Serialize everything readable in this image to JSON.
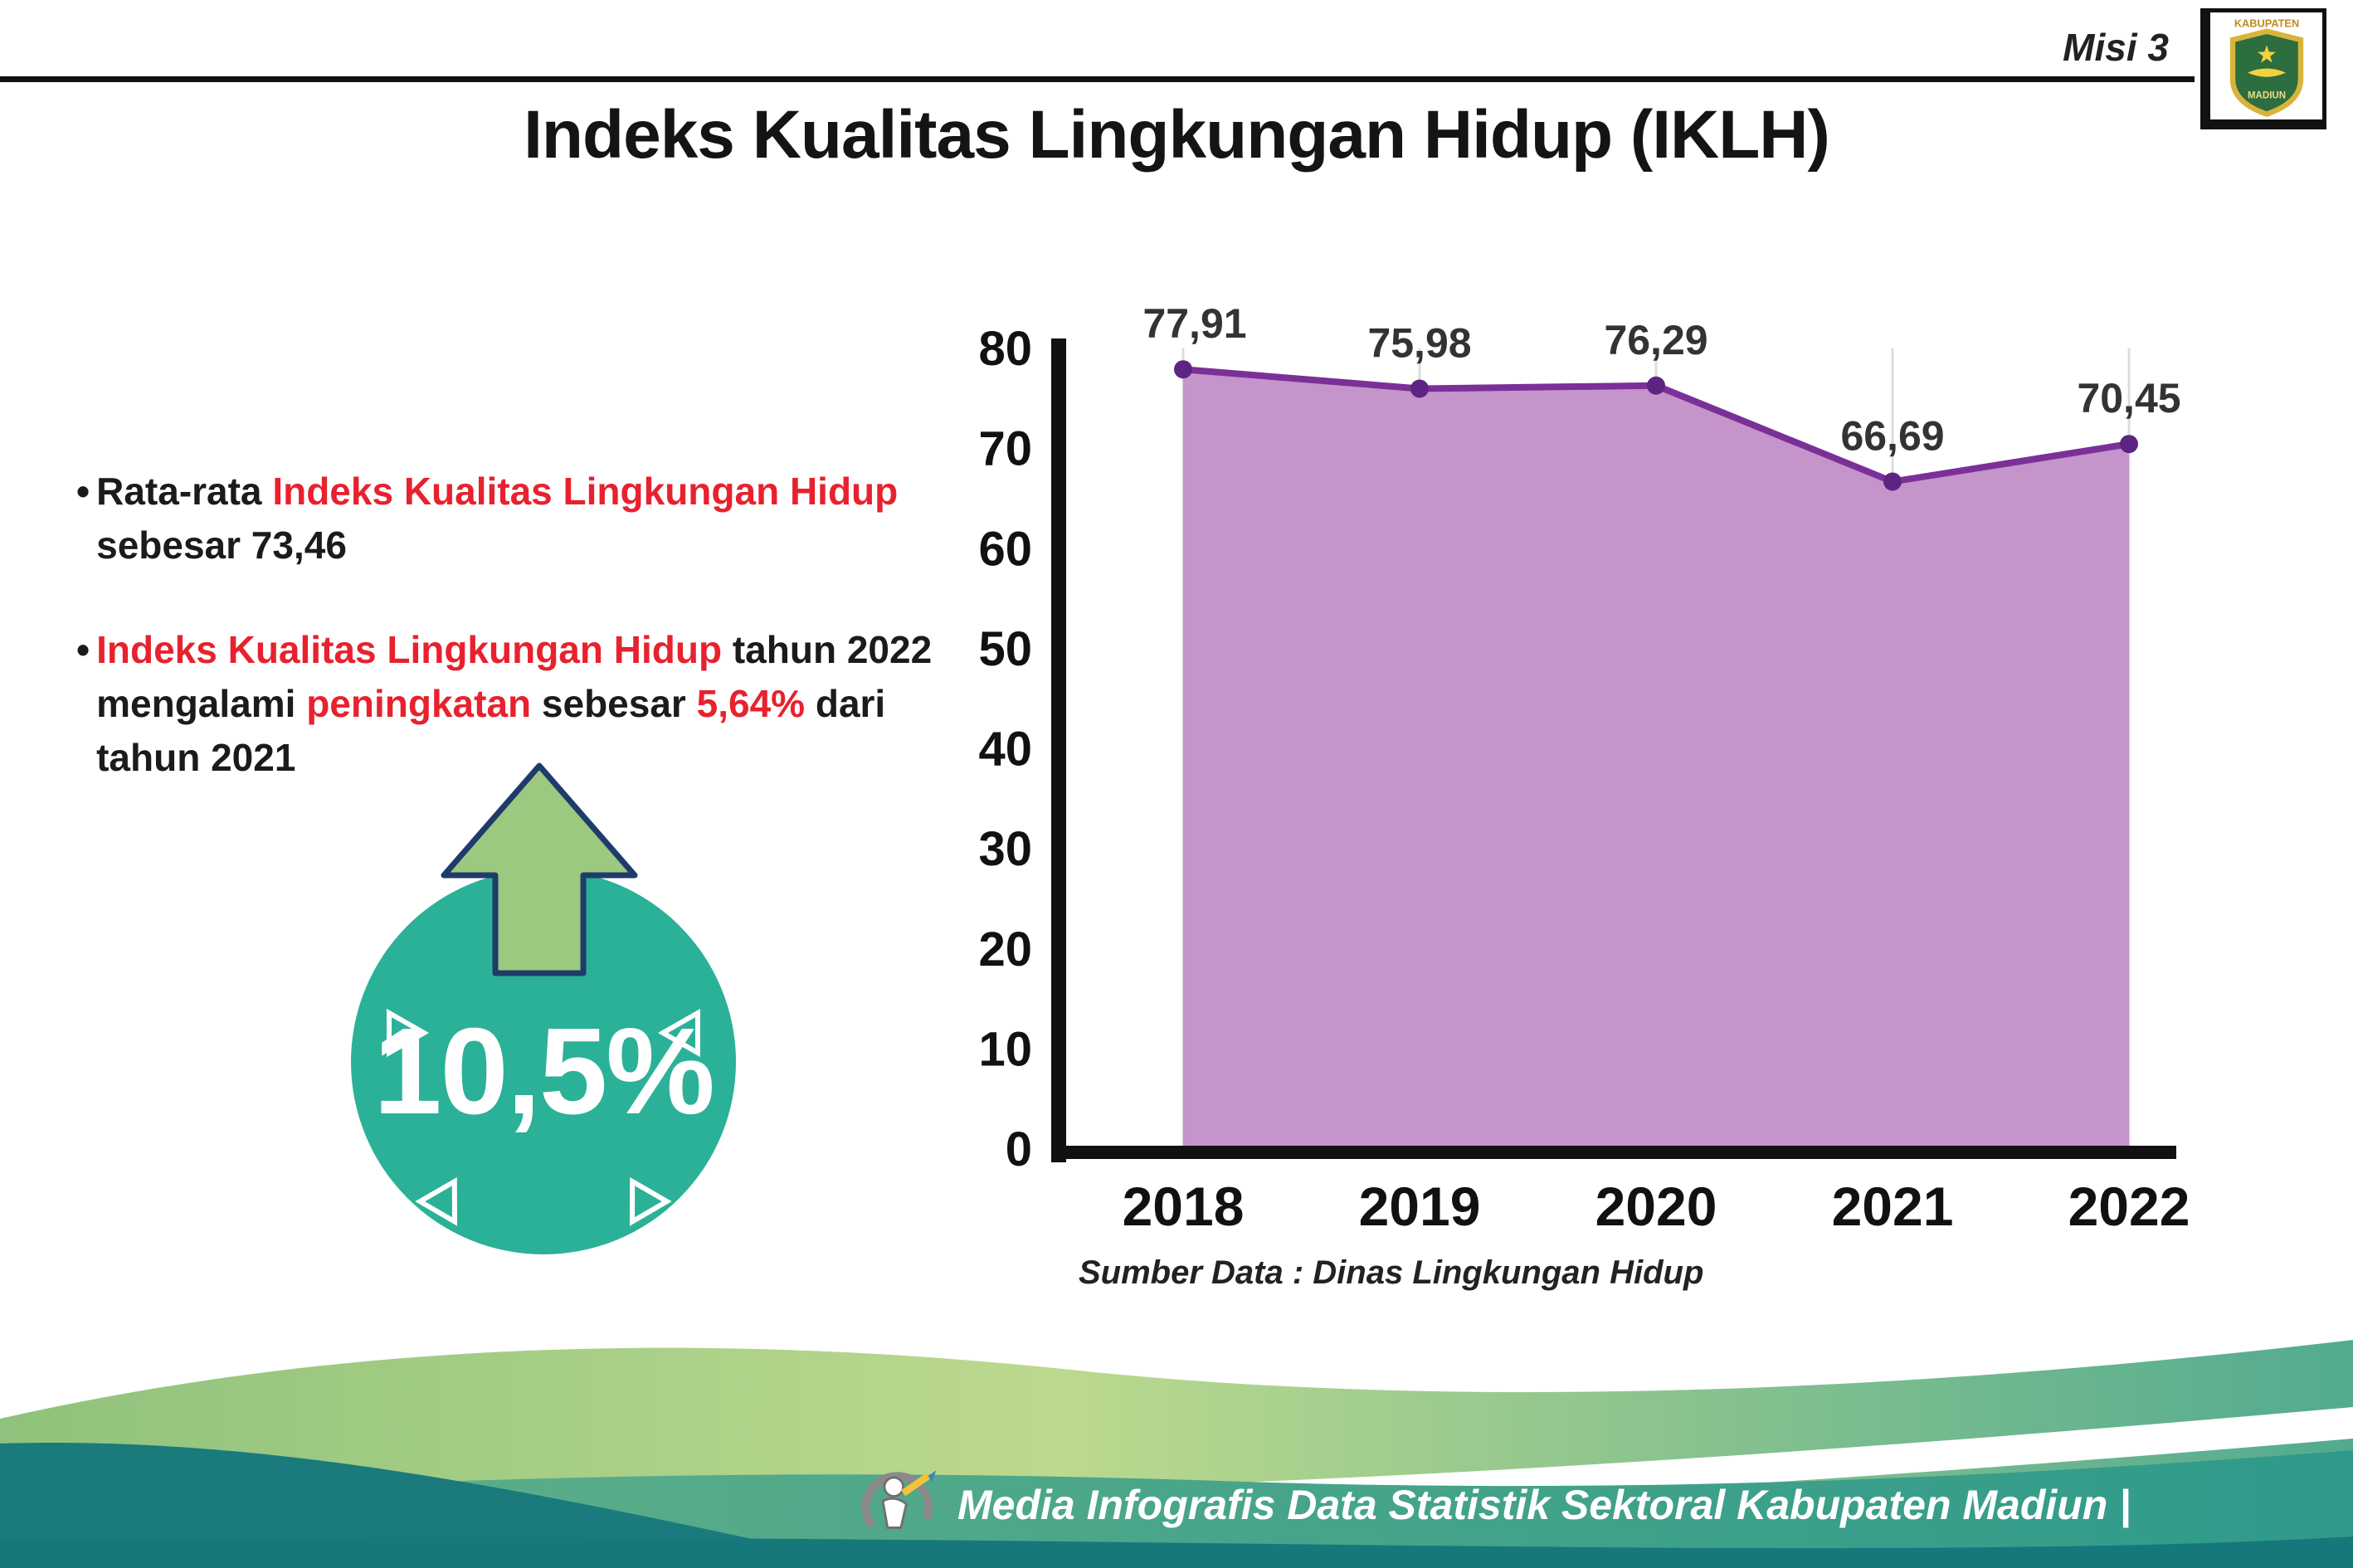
{
  "header": {
    "misi": "Misi 3",
    "title": "Indeks Kualitas Lingkungan Hidup (IKLH)"
  },
  "logo": {
    "line1": "KABUPATEN",
    "line2": "MADIUN"
  },
  "bullets": {
    "average": [
      {
        "t": "Rata-rata ",
        "c": "dark"
      },
      {
        "t": "Indeks Kualitas Lingkungan Hidup",
        "c": "red"
      },
      {
        "t": " sebesar 73,46",
        "c": "dark"
      }
    ],
    "increase": [
      {
        "t": "Indeks Kualitas Lingkungan Hidup",
        "c": "red"
      },
      {
        "t": " tahun 2022 mengalami ",
        "c": "dark"
      },
      {
        "t": "peningkatan",
        "c": "red"
      },
      {
        "t": " sebesar ",
        "c": "dark"
      },
      {
        "t": "5,64%",
        "c": "red"
      },
      {
        "t": " dari tahun 2021",
        "c": "dark"
      }
    ]
  },
  "badge": {
    "value": "10,5%",
    "circle_color": "#2bb198",
    "arrow_color": "#9dc87f",
    "arrow_outline": "#1e3c6b"
  },
  "chart_data": {
    "type": "area",
    "title": "",
    "categories": [
      "2018",
      "2019",
      "2020",
      "2021",
      "2022"
    ],
    "values": [
      77.91,
      75.98,
      76.29,
      66.69,
      70.45
    ],
    "point_labels": [
      "77,91",
      "75,98",
      "76,29",
      "66,69",
      "70,45"
    ],
    "ylim": [
      0,
      80
    ],
    "yticks": [
      0,
      10,
      20,
      30,
      40,
      50,
      60,
      70,
      80
    ],
    "xlabel": "",
    "ylabel": "",
    "legend": "none",
    "grid": "vertical",
    "area_color": "#c494cb",
    "line_color": "#7b3098",
    "marker_color": "#5e2483",
    "label_color": "#333333"
  },
  "source": "Sumber Data : Dinas Lingkungan Hidup",
  "footer": {
    "text": "Media Infografis Data Statistik Sektoral Kabupaten Madiun |"
  }
}
